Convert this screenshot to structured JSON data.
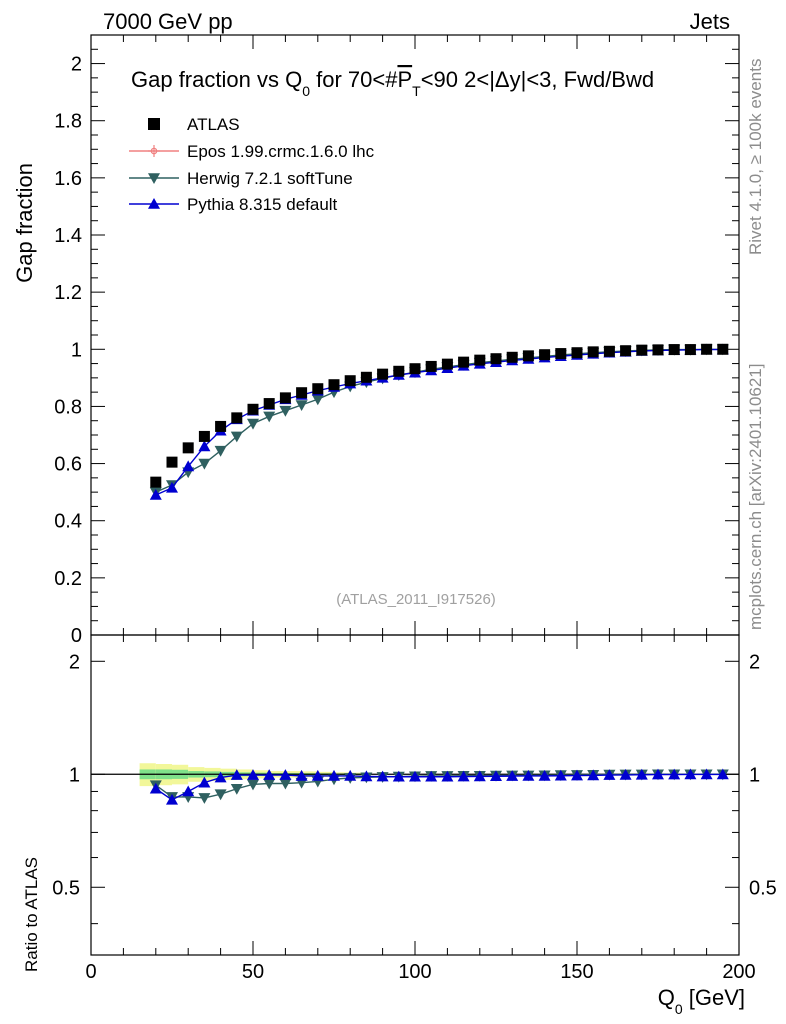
{
  "header": {
    "left": "7000 GeV pp",
    "right": "Jets"
  },
  "side_labels": {
    "rivet": "Rivet 4.1.0, ≥ 100k events",
    "mcplots": "mcplots.cern.ch [arXiv:2401.10621]"
  },
  "reference": "(ATLAS_2011_I917526)",
  "chart_data": [
    {
      "type": "scatter",
      "panel": "main",
      "title": "Gap fraction vs Q0 for 70<#PT<90  2<|Δy|<3, Fwd/Bwd",
      "title_parts": {
        "a": "Gap fraction vs Q",
        "a_sub": "0",
        "b": " for 70<#",
        "p": "P",
        "p_sub": "T",
        "c": "<90  2<|Δy|<3, Fwd/Bwd"
      },
      "ylabel": "Gap fraction",
      "xlabel": "Q0 [GeV]",
      "xlabel_parts": {
        "q": "Q",
        "sub": "0",
        "unit": " [GeV]"
      },
      "xlim": [
        0,
        200
      ],
      "ylim": [
        0,
        2.1
      ],
      "yticks": [
        "0",
        "0.2",
        "0.4",
        "0.6",
        "0.8",
        "1",
        "1.2",
        "1.4",
        "1.6",
        "1.8",
        "2"
      ],
      "ytick_values": [
        0,
        0.2,
        0.4,
        0.6,
        0.8,
        1.0,
        1.2,
        1.4,
        1.6,
        1.8,
        2.0
      ],
      "x": [
        20,
        25,
        30,
        35,
        40,
        45,
        50,
        55,
        60,
        65,
        70,
        75,
        80,
        85,
        90,
        95,
        100,
        105,
        110,
        115,
        120,
        125,
        130,
        135,
        140,
        145,
        150,
        155,
        160,
        165,
        170,
        175,
        180,
        185,
        190,
        195
      ],
      "series": [
        {
          "name": "ATLAS",
          "marker": "square",
          "color": "#000000",
          "values": [
            0.535,
            0.605,
            0.655,
            0.695,
            0.73,
            0.76,
            0.79,
            0.81,
            0.83,
            0.848,
            0.862,
            0.876,
            0.89,
            0.902,
            0.913,
            0.923,
            0.932,
            0.94,
            0.948,
            0.955,
            0.962,
            0.967,
            0.972,
            0.977,
            0.981,
            0.985,
            0.988,
            0.991,
            0.993,
            0.995,
            0.997,
            0.998,
            0.999,
            0.999,
            1.0,
            1.0
          ]
        },
        {
          "name": "Epos 1.99.crmc.1.6.0 lhc",
          "marker": "open-cross",
          "color": "#f08080",
          "values": []
        },
        {
          "name": "Herwig 7.2.1 softTune",
          "marker": "triangle-down",
          "color": "#2f6060",
          "values": [
            0.5,
            0.525,
            0.57,
            0.6,
            0.645,
            0.695,
            0.74,
            0.765,
            0.785,
            0.805,
            0.825,
            0.85,
            0.87,
            0.885,
            0.898,
            0.91,
            0.92,
            0.93,
            0.938,
            0.946,
            0.953,
            0.959,
            0.965,
            0.97,
            0.975,
            0.98,
            0.984,
            0.988,
            0.991,
            0.994,
            0.996,
            0.998,
            0.999,
            0.999,
            1.0,
            1.0
          ]
        },
        {
          "name": "Pythia 8.315 default",
          "marker": "triangle-up",
          "color": "#0000d0",
          "values": [
            0.49,
            0.515,
            0.59,
            0.66,
            0.715,
            0.755,
            0.785,
            0.805,
            0.825,
            0.84,
            0.855,
            0.868,
            0.88,
            0.89,
            0.9,
            0.91,
            0.918,
            0.926,
            0.934,
            0.942,
            0.949,
            0.955,
            0.961,
            0.966,
            0.971,
            0.976,
            0.98,
            0.984,
            0.988,
            0.991,
            0.994,
            0.996,
            0.997,
            0.998,
            0.999,
            0.999
          ]
        }
      ]
    },
    {
      "type": "scatter",
      "panel": "ratio",
      "ylabel": "Ratio to ATLAS",
      "xlim": [
        0,
        200
      ],
      "ylim": [
        0.33,
        2.35
      ],
      "yticks": [
        "0.5",
        "1",
        "2"
      ],
      "ytick_values": [
        0.5,
        1,
        2
      ],
      "xticks": [
        "0",
        "50",
        "100",
        "150",
        "200"
      ],
      "xtick_values": [
        0,
        50,
        100,
        150,
        200
      ],
      "band": {
        "color_inner": "#7fe08a",
        "color_outer": "#f2f79a",
        "x": [
          17.5,
          22.5,
          27.5,
          32.5,
          37.5,
          42.5,
          47.5,
          52.5,
          57.5,
          62.5,
          67.5,
          72.5,
          77.5,
          82.5
        ],
        "outer_half": [
          0.07,
          0.065,
          0.06,
          0.045,
          0.04,
          0.035,
          0.03,
          0.025,
          0.02,
          0.02,
          0.018,
          0.015,
          0.012,
          0.01
        ],
        "inner_half": [
          0.03,
          0.03,
          0.028,
          0.02,
          0.018,
          0.015,
          0.012,
          0.01,
          0.008,
          0.008,
          0.007,
          0.006,
          0.005,
          0.004
        ]
      },
      "series": [
        {
          "name": "Herwig 7.2.1 softTune",
          "values": [
            0.935,
            0.87,
            0.87,
            0.865,
            0.885,
            0.915,
            0.94,
            0.945,
            0.945,
            0.95,
            0.957,
            0.97,
            0.978,
            0.982,
            0.984,
            0.986,
            0.988,
            0.99,
            0.99,
            0.991,
            0.991,
            0.992,
            0.993,
            0.993,
            0.994,
            0.995,
            0.996,
            0.997,
            0.998,
            0.999,
            0.999,
            1.0,
            1.0,
            1.0,
            1.0,
            1.0
          ]
        },
        {
          "name": "Pythia 8.315 default",
          "values": [
            0.915,
            0.855,
            0.9,
            0.95,
            0.98,
            0.995,
            0.995,
            0.995,
            0.995,
            0.99,
            0.99,
            0.99,
            0.99,
            0.987,
            0.986,
            0.985,
            0.985,
            0.985,
            0.985,
            0.986,
            0.987,
            0.988,
            0.989,
            0.99,
            0.99,
            0.991,
            0.992,
            0.993,
            0.995,
            0.996,
            0.997,
            0.998,
            0.998,
            0.999,
            0.999,
            0.999
          ]
        }
      ]
    }
  ]
}
